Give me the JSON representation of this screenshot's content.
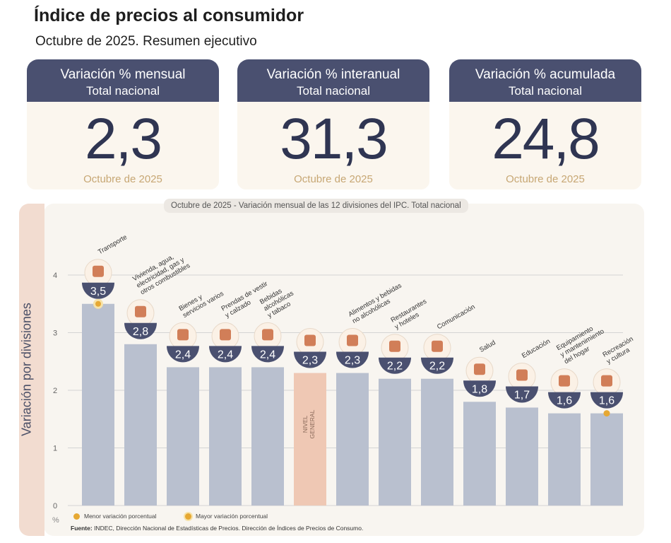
{
  "header": {
    "title": "Índice de precios al consumidor",
    "subtitle": "Octubre de 2025. Resumen ejecutivo"
  },
  "cards": [
    {
      "label": "Variación % mensual",
      "sublabel": "Total nacional",
      "value": "2,3",
      "period": "Octubre de 2025"
    },
    {
      "label": "Variación % interanual",
      "sublabel": "Total nacional",
      "value": "31,3",
      "period": "Octubre de 2025"
    },
    {
      "label": "Variación % acumulada",
      "sublabel": "Total nacional",
      "value": "24,8",
      "period": "Octubre de 2025"
    }
  ],
  "chart_title": {
    "lead": "Octubre de 2025",
    "sep": " - ",
    "text": "Variación mensual de las 12 divisiones del IPC. Total nacional"
  },
  "legend": {
    "min_label": "Menor variación porcentual",
    "max_label": "Mayor variación porcentual"
  },
  "source": {
    "prefix": "Fuente:",
    "text": " INDEC, Dirección Nacional de Estadísticas de Precios. Dirección de Índices de Precios de Consumo."
  },
  "chart_data": {
    "type": "bar",
    "ylabel": "Variación por divisiones",
    "yunit": "%",
    "ylim": [
      0,
      4
    ],
    "yticks": [
      0,
      1,
      2,
      3,
      4
    ],
    "grid": true,
    "categories": [
      "Transporte",
      "Vivienda, agua, electricidad, gas y otros combustibles",
      "Bienes y servicios varios",
      "Prendas de vestir y calzado",
      "Bebidas alcohólicas y tabaco",
      "NIVEL GENERAL",
      "Alimentos y bebidas no alcohólicas",
      "Restaurantes y hoteles",
      "Comunicación",
      "Salud",
      "Educación",
      "Equipamiento y mantenimiento del hogar",
      "Recreación y cultura"
    ],
    "label_lines": [
      [
        "Transporte"
      ],
      [
        "Vivienda, agua,",
        "electricidad, gas y",
        "otros combustibles"
      ],
      [
        "Bienes y",
        "servicios varios"
      ],
      [
        "Prendas de vestir",
        "y calzado"
      ],
      [
        "Bebidas",
        "alcohólicas",
        "y tabaco"
      ],
      [],
      [
        "Alimentos y bebidas",
        "no alcohólicas"
      ],
      [
        "Restaurantes",
        "y hoteles"
      ],
      [
        "Comunicación"
      ],
      [
        "Salud"
      ],
      [
        "Educación"
      ],
      [
        "Equipamiento",
        "y mantenimiento",
        "del hogar"
      ],
      [
        "Recreación",
        "y cultura"
      ]
    ],
    "values": [
      3.5,
      2.8,
      2.4,
      2.4,
      2.4,
      2.3,
      2.3,
      2.2,
      2.2,
      1.8,
      1.7,
      1.6,
      1.6
    ],
    "value_labels": [
      "3,5",
      "2,8",
      "2,4",
      "2,4",
      "2,4",
      "2,3",
      "2,3",
      "2,2",
      "2,2",
      "1,8",
      "1,7",
      "1,6",
      "1,6"
    ],
    "general_label": [
      "NIVEL",
      "GENERAL"
    ],
    "general_index": 5,
    "icons": [
      "bus-icon",
      "tools-lightbulb-icon",
      "comb-scissors-icon",
      "tshirt-icon",
      "bottles-icon",
      "shopping-basket-icon",
      "chicken-icon",
      "cutlery-icon",
      "smartphone-icon",
      "first-aid-icon",
      "notebook-icon",
      "furniture-icon",
      "umbrella-icon"
    ],
    "highlight_max_index": 0,
    "highlight_min_index": 12,
    "colors": {
      "bar": "#b9c0cf",
      "general_bar": "#efc8b4",
      "badge": "#4a5070",
      "accent": "#c96a3e",
      "dot": "#e6a833",
      "grid": "#d4d4d4"
    }
  }
}
